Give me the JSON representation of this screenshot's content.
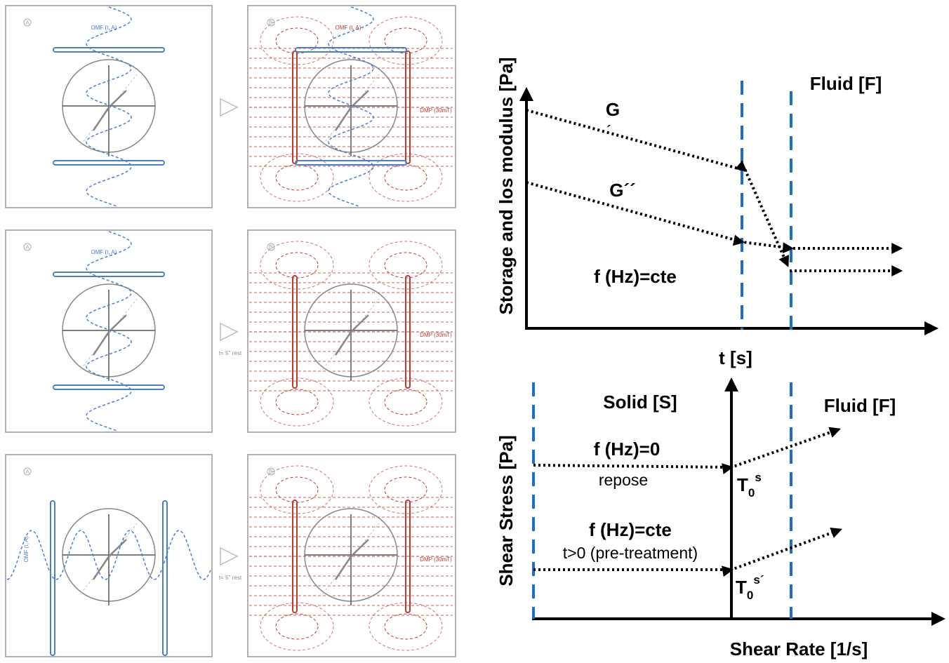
{
  "panels": [
    {
      "left": {
        "label": "A",
        "field": "OMF (t, A)"
      },
      "right": {
        "label": "B",
        "field": "OMF (t, A)",
        "dmp": "DMP (30mT)"
      }
    },
    {
      "left": {
        "label": "A",
        "field": "OMF (t, A)"
      },
      "note": "t= 5'' rest",
      "right": {
        "label": "B",
        "dmp": "DMP (30mT)"
      }
    },
    {
      "left": {
        "label": "A",
        "field": "OMF (t, A)"
      },
      "note": "t= 5'' rest",
      "right": {
        "label": "B",
        "dmp": "DMP (30mT)"
      }
    }
  ],
  "top_plot": {
    "y_label": "Storage and los modulus [Pa]",
    "region": "Fluid [F]",
    "g1": "G",
    "g1_mark": "´",
    "g2": "G´´",
    "condition": "f (Hz)=cte",
    "x_label": "t [s]"
  },
  "bottom_plot": {
    "y_label": "Shear Stress [Pa]",
    "solid": "Solid [S]",
    "fluid": "Fluid [F]",
    "cond1": "f (Hz)=0",
    "cond1_note": "repose",
    "t1": {
      "base": "T",
      "sub": "0",
      "sup": "s"
    },
    "cond2": "f (Hz)=cte",
    "cond2_note": "t>0 (pre-treatment)",
    "t2": {
      "base": "T",
      "sub": "0",
      "sup": "s´"
    },
    "x_label": "Shear Rate [1/s]"
  }
}
